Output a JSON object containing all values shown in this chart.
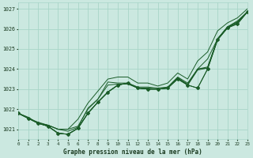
{
  "title": "Graphe pression niveau de la mer (hPa)",
  "bg_color": "#cbe8e0",
  "grid_color": "#a8d5c8",
  "line_color": "#1a5c28",
  "text_color": "#1a3a20",
  "xlim": [
    0,
    23
  ],
  "ylim": [
    1020.5,
    1027.3
  ],
  "yticks": [
    1021,
    1022,
    1023,
    1024,
    1025,
    1026,
    1027
  ],
  "xticks": [
    0,
    1,
    2,
    3,
    4,
    5,
    6,
    7,
    8,
    9,
    10,
    11,
    12,
    13,
    14,
    15,
    16,
    17,
    18,
    19,
    20,
    21,
    22,
    23
  ],
  "series": [
    [
      1021.8,
      1021.55,
      1021.3,
      1021.15,
      1020.8,
      1020.75,
      1021.05,
      1021.8,
      1022.35,
      1022.85,
      1023.2,
      1023.3,
      1023.05,
      1023.0,
      1023.0,
      1023.05,
      1023.5,
      1023.2,
      1023.05,
      1024.0,
      1025.45,
      1026.05,
      1026.25,
      1026.85
    ],
    [
      1021.8,
      1021.55,
      1021.3,
      1021.15,
      1020.8,
      1020.75,
      1021.05,
      1021.8,
      1022.35,
      1022.85,
      1023.2,
      1023.3,
      1023.05,
      1023.0,
      1023.0,
      1023.05,
      1023.55,
      1023.2,
      1023.95,
      1024.05,
      1025.5,
      1026.1,
      1026.3,
      1026.85
    ],
    [
      1021.8,
      1021.55,
      1021.3,
      1021.15,
      1020.8,
      1020.75,
      1021.05,
      1021.8,
      1022.35,
      1022.85,
      1023.2,
      1023.3,
      1023.05,
      1023.0,
      1023.0,
      1023.05,
      1023.55,
      1023.2,
      1024.0,
      1024.5,
      1025.5,
      1026.1,
      1026.35,
      1026.85
    ],
    [
      1021.8,
      1021.55,
      1021.35,
      1021.2,
      1021.0,
      1020.9,
      1021.1,
      1022.05,
      1022.5,
      1023.35,
      1023.3,
      1023.3,
      1023.1,
      1023.1,
      1023.05,
      1023.1,
      1023.6,
      1023.3,
      1024.0,
      1024.1,
      1025.5,
      1026.1,
      1026.4,
      1026.85
    ],
    [
      1021.8,
      1021.6,
      1021.3,
      1021.2,
      1021.0,
      1021.0,
      1021.15,
      1022.0,
      1022.5,
      1023.2,
      1023.25,
      1023.25,
      1023.05,
      1023.05,
      1023.0,
      1023.05,
      1023.55,
      1023.25,
      1024.0,
      1024.05,
      1025.5,
      1026.05,
      1026.35,
      1026.85
    ]
  ],
  "marker_line": [
    1021.8,
    1021.55,
    1021.3,
    1021.15,
    1020.8,
    1020.75,
    1021.05,
    1021.8,
    1022.35,
    1022.85,
    1023.2,
    1023.3,
    1023.05,
    1023.0,
    1023.0,
    1023.05,
    1023.5,
    1023.2,
    1023.05,
    1024.0,
    1025.45,
    1026.05,
    1026.25,
    1026.85
  ],
  "top_line": [
    1021.8,
    1021.55,
    1021.3,
    1021.2,
    1021.0,
    1021.0,
    1021.5,
    1022.3,
    1022.9,
    1023.5,
    1023.6,
    1023.6,
    1023.3,
    1023.3,
    1023.15,
    1023.3,
    1023.8,
    1023.5,
    1024.4,
    1024.85,
    1025.9,
    1026.3,
    1026.55,
    1027.0
  ]
}
